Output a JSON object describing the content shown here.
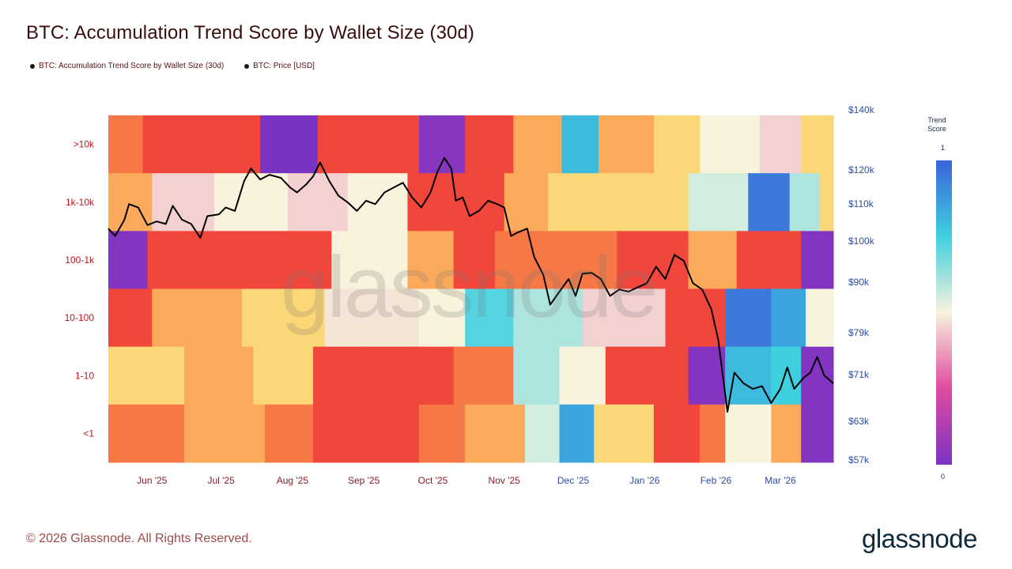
{
  "title": "BTC: Accumulation Trend Score by Wallet Size (30d)",
  "legend": [
    {
      "label": "BTC: Accumulation Trend Score by Wallet Size (30d)"
    },
    {
      "label": "BTC: Price [USD]"
    }
  ],
  "colorbar": {
    "title": "Trend Score",
    "max_label": "1",
    "min_label": "0"
  },
  "footer": "© 2026 Glassnode. All Rights Reserved.",
  "brand": "glassnode",
  "watermark": "glassnode",
  "colors": {
    "price_line": "#000000",
    "scale_low": "#7b33c4",
    "scale_mid_low": "#e04aa0",
    "scale_mid": "#f7f3dc",
    "scale_mid_high": "#3fd0e0",
    "scale_high": "#3a64d8",
    "left_tick_color": "#c0141a",
    "right_tick_color": "#2d4d9e"
  },
  "chart_data": {
    "type": "heatmap",
    "rows": [
      ">10k",
      "1k-10k",
      "100-1k",
      "10-100",
      "1-10",
      "<1"
    ],
    "x_ticks": [
      "Jun '25",
      "Jul '25",
      "Aug '25",
      "Sep '25",
      "Oct '25",
      "Nov '25",
      "Dec '25",
      "Jan '26",
      "Feb '26",
      "Mar '26"
    ],
    "x_range": [
      "2025-05-13",
      "2026-03-24"
    ],
    "price_axis": {
      "scale": "log",
      "range": [
        55500,
        140000
      ],
      "ticks": [
        "$140k",
        "$120k",
        "$110k",
        "$100k",
        "$90k",
        "$79k",
        "$71k",
        "$63k",
        "$57k"
      ]
    },
    "score_range": [
      0,
      1
    ],
    "bands": [
      {
        "row": ">10k",
        "segments": [
          [
            "2025-05-13",
            0.18
          ],
          [
            "2025-05-28",
            0.12
          ],
          [
            "2025-06-12",
            0.05
          ],
          [
            "2025-07-18",
            0.0
          ],
          [
            "2025-08-12",
            0.08
          ],
          [
            "2025-09-01",
            0.12
          ],
          [
            "2025-09-25",
            0.03
          ],
          [
            "2025-10-15",
            0.1
          ],
          [
            "2025-11-05",
            0.3
          ],
          [
            "2025-11-26",
            0.8
          ],
          [
            "2025-12-12",
            0.32
          ],
          [
            "2026-01-05",
            0.42
          ],
          [
            "2026-01-25",
            0.5
          ],
          [
            "2026-02-20",
            0.45
          ],
          [
            "2026-03-10",
            0.4
          ]
        ]
      },
      {
        "row": "1k-10k",
        "segments": [
          [
            "2025-05-13",
            0.3
          ],
          [
            "2025-06-01",
            0.45
          ],
          [
            "2025-06-28",
            0.5
          ],
          [
            "2025-07-30",
            0.45
          ],
          [
            "2025-08-25",
            0.5
          ],
          [
            "2025-09-20",
            0.12
          ],
          [
            "2025-10-10",
            0.05
          ],
          [
            "2025-11-01",
            0.25
          ],
          [
            "2025-11-20",
            0.4
          ],
          [
            "2025-12-20",
            0.35
          ],
          [
            "2026-01-20",
            0.55
          ],
          [
            "2026-02-15",
            0.95
          ],
          [
            "2026-03-05",
            0.6
          ],
          [
            "2026-03-18",
            0.35
          ]
        ]
      },
      {
        "row": "100-1k",
        "segments": [
          [
            "2025-05-13",
            0.02
          ],
          [
            "2025-05-30",
            0.06
          ],
          [
            "2025-06-28",
            0.07
          ],
          [
            "2025-07-15",
            0.05
          ],
          [
            "2025-08-18",
            0.5
          ],
          [
            "2025-09-20",
            0.25
          ],
          [
            "2025-10-10",
            0.05
          ],
          [
            "2025-10-28",
            0.2
          ],
          [
            "2025-11-22",
            0.2
          ],
          [
            "2025-12-20",
            0.08
          ],
          [
            "2026-01-20",
            0.25
          ],
          [
            "2026-02-10",
            0.05
          ],
          [
            "2026-03-10",
            0.02
          ]
        ]
      },
      {
        "row": "10-100",
        "segments": [
          [
            "2025-05-13",
            0.12
          ],
          [
            "2025-06-01",
            0.3
          ],
          [
            "2025-07-10",
            0.4
          ],
          [
            "2025-08-15",
            0.48
          ],
          [
            "2025-09-25",
            0.5
          ],
          [
            "2025-10-15",
            0.72
          ],
          [
            "2025-11-05",
            0.6
          ],
          [
            "2025-12-05",
            0.45
          ],
          [
            "2026-01-10",
            0.05
          ],
          [
            "2026-02-05",
            0.95
          ],
          [
            "2026-02-25",
            0.85
          ],
          [
            "2026-03-12",
            0.5
          ]
        ]
      },
      {
        "row": "1-10",
        "segments": [
          [
            "2025-05-13",
            0.38
          ],
          [
            "2025-06-15",
            0.3
          ],
          [
            "2025-07-15",
            0.35
          ],
          [
            "2025-08-10",
            0.1
          ],
          [
            "2025-09-01",
            0.05
          ],
          [
            "2025-09-22",
            0.12
          ],
          [
            "2025-10-10",
            0.2
          ],
          [
            "2025-11-05",
            0.6
          ],
          [
            "2025-11-25",
            0.5
          ],
          [
            "2025-12-15",
            0.05
          ],
          [
            "2026-01-20",
            0.02
          ],
          [
            "2026-02-05",
            0.8
          ],
          [
            "2026-02-25",
            0.75
          ],
          [
            "2026-03-10",
            0.02
          ]
        ]
      },
      {
        "row": "<1",
        "segments": [
          [
            "2025-05-13",
            0.2
          ],
          [
            "2025-05-25",
            0.15
          ],
          [
            "2025-06-15",
            0.25
          ],
          [
            "2025-07-20",
            0.2
          ],
          [
            "2025-08-10",
            0.1
          ],
          [
            "2025-09-01",
            0.08
          ],
          [
            "2025-09-25",
            0.2
          ],
          [
            "2025-10-15",
            0.3
          ],
          [
            "2025-11-10",
            0.55
          ],
          [
            "2025-11-25",
            0.85
          ],
          [
            "2025-12-10",
            0.35
          ],
          [
            "2026-01-05",
            0.08
          ],
          [
            "2026-01-25",
            0.2
          ],
          [
            "2026-02-05",
            0.5
          ],
          [
            "2026-02-25",
            0.3
          ],
          [
            "2026-03-10",
            0.02
          ]
        ]
      }
    ],
    "price": [
      [
        "2025-05-13",
        103500
      ],
      [
        "2025-05-16",
        101500
      ],
      [
        "2025-05-20",
        106000
      ],
      [
        "2025-05-22",
        110500
      ],
      [
        "2025-05-26",
        109500
      ],
      [
        "2025-05-30",
        104500
      ],
      [
        "2025-06-03",
        105500
      ],
      [
        "2025-06-07",
        104800
      ],
      [
        "2025-06-10",
        110000
      ],
      [
        "2025-06-14",
        106000
      ],
      [
        "2025-06-18",
        104800
      ],
      [
        "2025-06-22",
        101000
      ],
      [
        "2025-06-25",
        107000
      ],
      [
        "2025-06-30",
        107500
      ],
      [
        "2025-07-03",
        109500
      ],
      [
        "2025-07-07",
        108500
      ],
      [
        "2025-07-11",
        117500
      ],
      [
        "2025-07-14",
        121500
      ],
      [
        "2025-07-18",
        118000
      ],
      [
        "2025-07-22",
        119500
      ],
      [
        "2025-07-27",
        118500
      ],
      [
        "2025-07-31",
        115500
      ],
      [
        "2025-08-03",
        114000
      ],
      [
        "2025-08-07",
        116500
      ],
      [
        "2025-08-10",
        119000
      ],
      [
        "2025-08-13",
        123500
      ],
      [
        "2025-08-17",
        117500
      ],
      [
        "2025-08-21",
        113000
      ],
      [
        "2025-08-25",
        111000
      ],
      [
        "2025-08-29",
        108500
      ],
      [
        "2025-09-02",
        111500
      ],
      [
        "2025-09-06",
        110500
      ],
      [
        "2025-09-10",
        114000
      ],
      [
        "2025-09-14",
        115500
      ],
      [
        "2025-09-18",
        117000
      ],
      [
        "2025-09-22",
        112500
      ],
      [
        "2025-09-26",
        109500
      ],
      [
        "2025-09-30",
        114000
      ],
      [
        "2025-10-03",
        120500
      ],
      [
        "2025-10-06",
        125000
      ],
      [
        "2025-10-09",
        121500
      ],
      [
        "2025-10-11",
        111500
      ],
      [
        "2025-10-14",
        112500
      ],
      [
        "2025-10-17",
        107000
      ],
      [
        "2025-10-21",
        108500
      ],
      [
        "2025-10-25",
        111500
      ],
      [
        "2025-10-29",
        110500
      ],
      [
        "2025-11-01",
        109500
      ],
      [
        "2025-11-04",
        101500
      ],
      [
        "2025-11-07",
        102500
      ],
      [
        "2025-11-11",
        103500
      ],
      [
        "2025-11-14",
        96000
      ],
      [
        "2025-11-18",
        91500
      ],
      [
        "2025-11-21",
        84500
      ],
      [
        "2025-11-25",
        87500
      ],
      [
        "2025-11-29",
        90500
      ],
      [
        "2025-12-02",
        86500
      ],
      [
        "2025-12-05",
        91800
      ],
      [
        "2025-12-09",
        92000
      ],
      [
        "2025-12-13",
        90500
      ],
      [
        "2025-12-17",
        86500
      ],
      [
        "2025-12-21",
        88000
      ],
      [
        "2025-12-25",
        87500
      ],
      [
        "2025-12-29",
        88500
      ],
      [
        "2026-01-02",
        89500
      ],
      [
        "2026-01-06",
        93500
      ],
      [
        "2026-01-10",
        90500
      ],
      [
        "2026-01-14",
        96500
      ],
      [
        "2026-01-18",
        95000
      ],
      [
        "2026-01-22",
        89500
      ],
      [
        "2026-01-26",
        88000
      ],
      [
        "2026-01-30",
        83500
      ],
      [
        "2026-02-02",
        77000
      ],
      [
        "2026-02-06",
        63500
      ],
      [
        "2026-02-09",
        70500
      ],
      [
        "2026-02-13",
        68500
      ],
      [
        "2026-02-17",
        67500
      ],
      [
        "2026-02-21",
        68000
      ],
      [
        "2026-02-25",
        65000
      ],
      [
        "2026-03-01",
        67500
      ],
      [
        "2026-03-04",
        71500
      ],
      [
        "2026-03-07",
        67500
      ],
      [
        "2026-03-11",
        69500
      ],
      [
        "2026-03-14",
        70500
      ],
      [
        "2026-03-17",
        73500
      ],
      [
        "2026-03-20",
        70000
      ],
      [
        "2026-03-24",
        68500
      ]
    ]
  }
}
